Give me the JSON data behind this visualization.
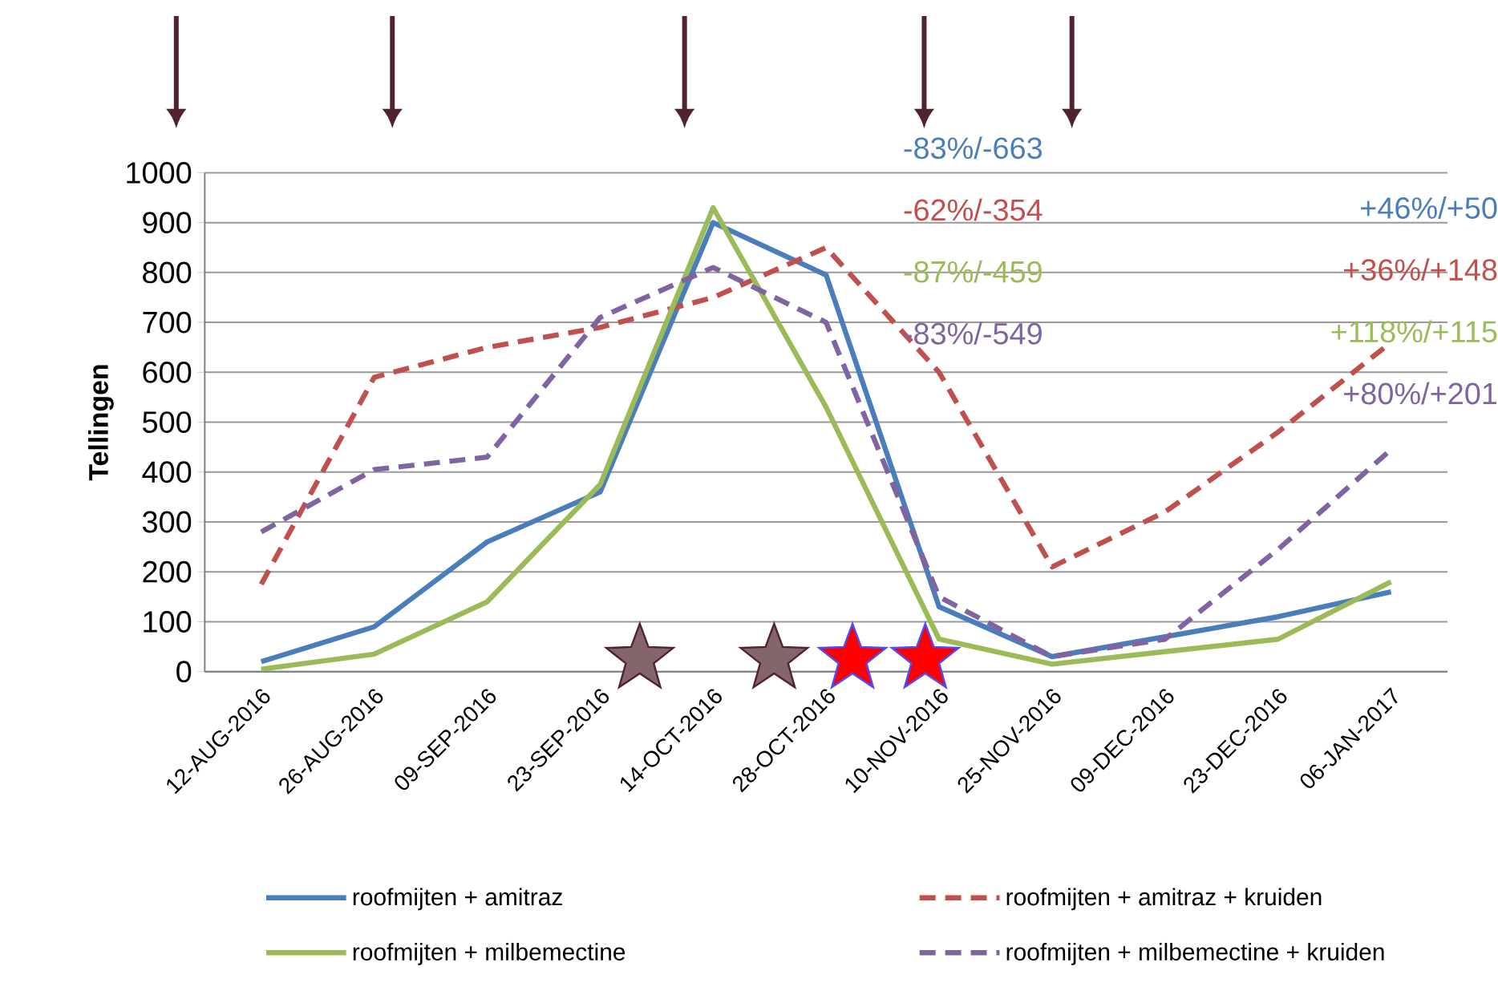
{
  "chart_data": {
    "type": "line",
    "ylabel": "Tellingen",
    "categories": [
      "12-AUG-2016",
      "26-AUG-2016",
      "09-SEP-2016",
      "23-SEP-2016",
      "14-OCT-2016",
      "28-OCT-2016",
      "10-NOV-2016",
      "25-NOV-2016",
      "09-DEC-2016",
      "23-DEC-2016",
      "06-JAN-2017"
    ],
    "series": [
      {
        "name": "roofmijten + amitraz",
        "color": "#4a7ebb",
        "line_style": "solid",
        "values": [
          20,
          90,
          260,
          360,
          900,
          795,
          130,
          30,
          70,
          110,
          160
        ]
      },
      {
        "name": "roofmijten + amitraz + kruiden",
        "color": "#c0504d",
        "line_style": "dashed",
        "values": [
          175,
          590,
          650,
          690,
          750,
          850,
          600,
          210,
          320,
          480,
          660
        ]
      },
      {
        "name": "roofmijten + milbemectine",
        "color": "#9bbb59",
        "line_style": "solid",
        "values": [
          5,
          35,
          140,
          375,
          930,
          530,
          65,
          15,
          40,
          65,
          180
        ]
      },
      {
        "name": "roofmijten + milbemectine + kruiden",
        "color": "#8064a2",
        "line_style": "dashed",
        "values": [
          280,
          405,
          430,
          710,
          810,
          700,
          150,
          30,
          65,
          245,
          445
        ]
      }
    ],
    "ylim": [
      0,
      1000
    ],
    "yticks": [
      0,
      100,
      200,
      300,
      400,
      500,
      600,
      700,
      800,
      900,
      1000
    ],
    "grid": "y",
    "legend": "bottom",
    "marker": "none",
    "annotations": [
      "-83%/-663",
      "-62%/-354",
      "-87%/-459",
      "-83%/-549",
      "+46%/+50",
      "+36%/+148",
      "+118%/+115",
      "+80%/+201"
    ]
  }
}
